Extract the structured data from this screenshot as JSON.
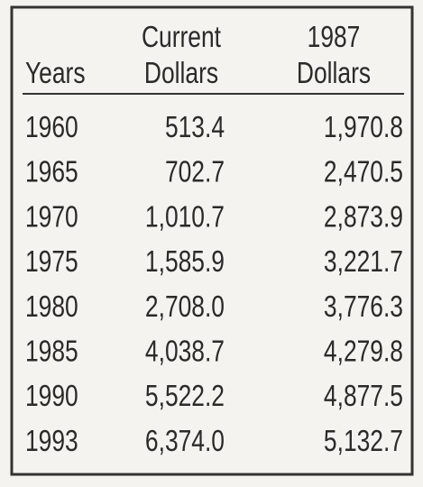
{
  "table": {
    "header": [
      [
        "Years"
      ],
      [
        "Current",
        "Dollars"
      ],
      [
        "1987",
        "Dollars"
      ]
    ],
    "rows": [
      [
        "1960",
        "513.4",
        "1,970.8"
      ],
      [
        "1965",
        "702.7",
        "2,470.5"
      ],
      [
        "1970",
        "1,010.7",
        "2,873.9"
      ],
      [
        "1975",
        "1,585.9",
        "3,221.7"
      ],
      [
        "1980",
        "2,708.0",
        "3,776.3"
      ],
      [
        "1985",
        "4,038.7",
        "4,279.8"
      ],
      [
        "1990",
        "5,522.2",
        "4,877.5"
      ],
      [
        "1993",
        "6,374.0",
        "5,132.7"
      ]
    ]
  }
}
